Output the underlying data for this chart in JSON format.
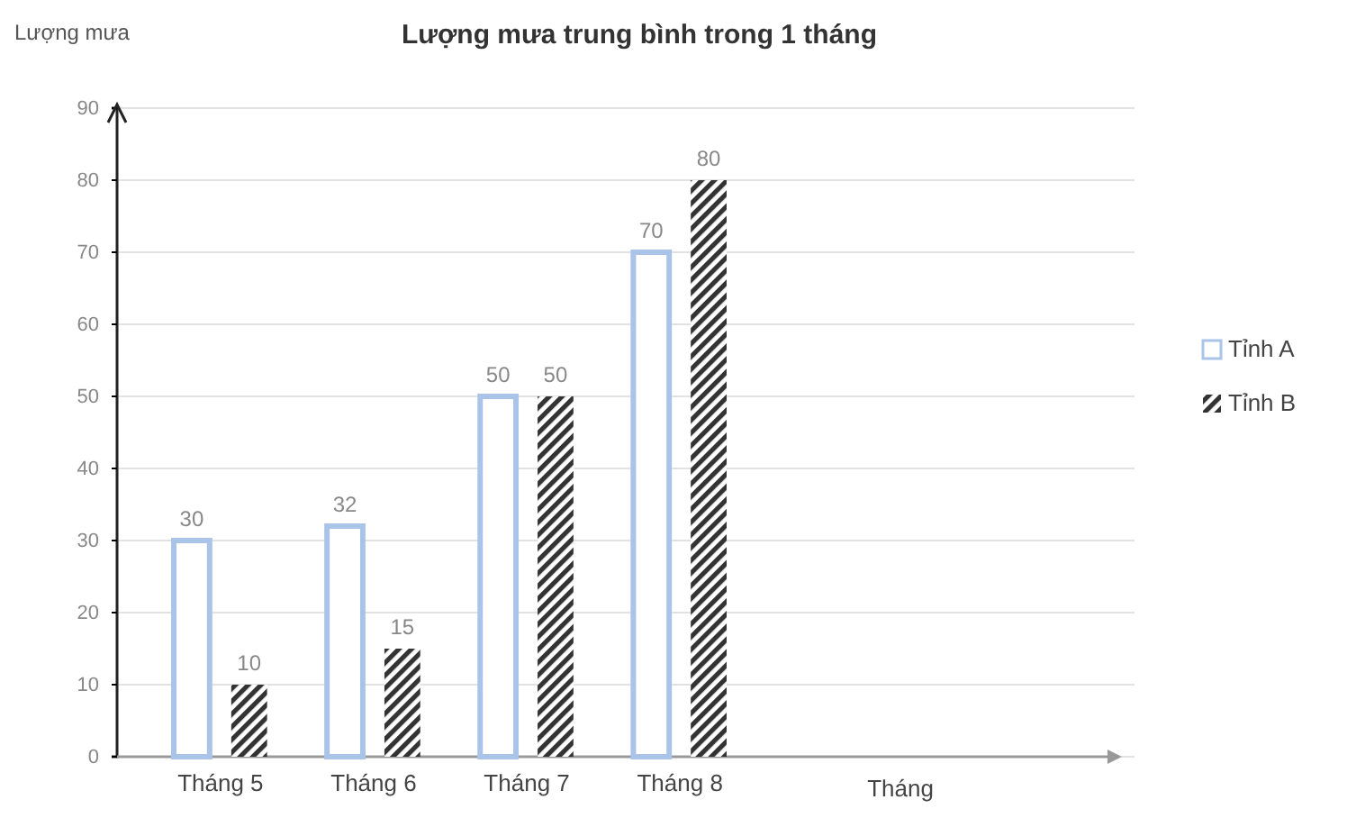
{
  "chart_data": {
    "type": "bar",
    "title": "Lượng mưa trung bình trong 1 tháng",
    "ylabel": "Lượng mưa",
    "xlabel": "Tháng",
    "categories": [
      "Tháng 5",
      "Tháng 6",
      "Tháng 7",
      "Tháng 8"
    ],
    "series": [
      {
        "name": "Tỉnh A",
        "color": "#a9c4e8",
        "values": [
          30,
          32,
          50,
          70
        ]
      },
      {
        "name": "Tỉnh B",
        "color": "#333333",
        "values": [
          10,
          15,
          50,
          80
        ]
      }
    ],
    "ylim": [
      0,
      90
    ],
    "yticks": [
      0,
      10,
      20,
      30,
      40,
      50,
      60,
      70,
      80,
      90
    ],
    "grid": "y",
    "legend": "right",
    "data_labels": true
  }
}
